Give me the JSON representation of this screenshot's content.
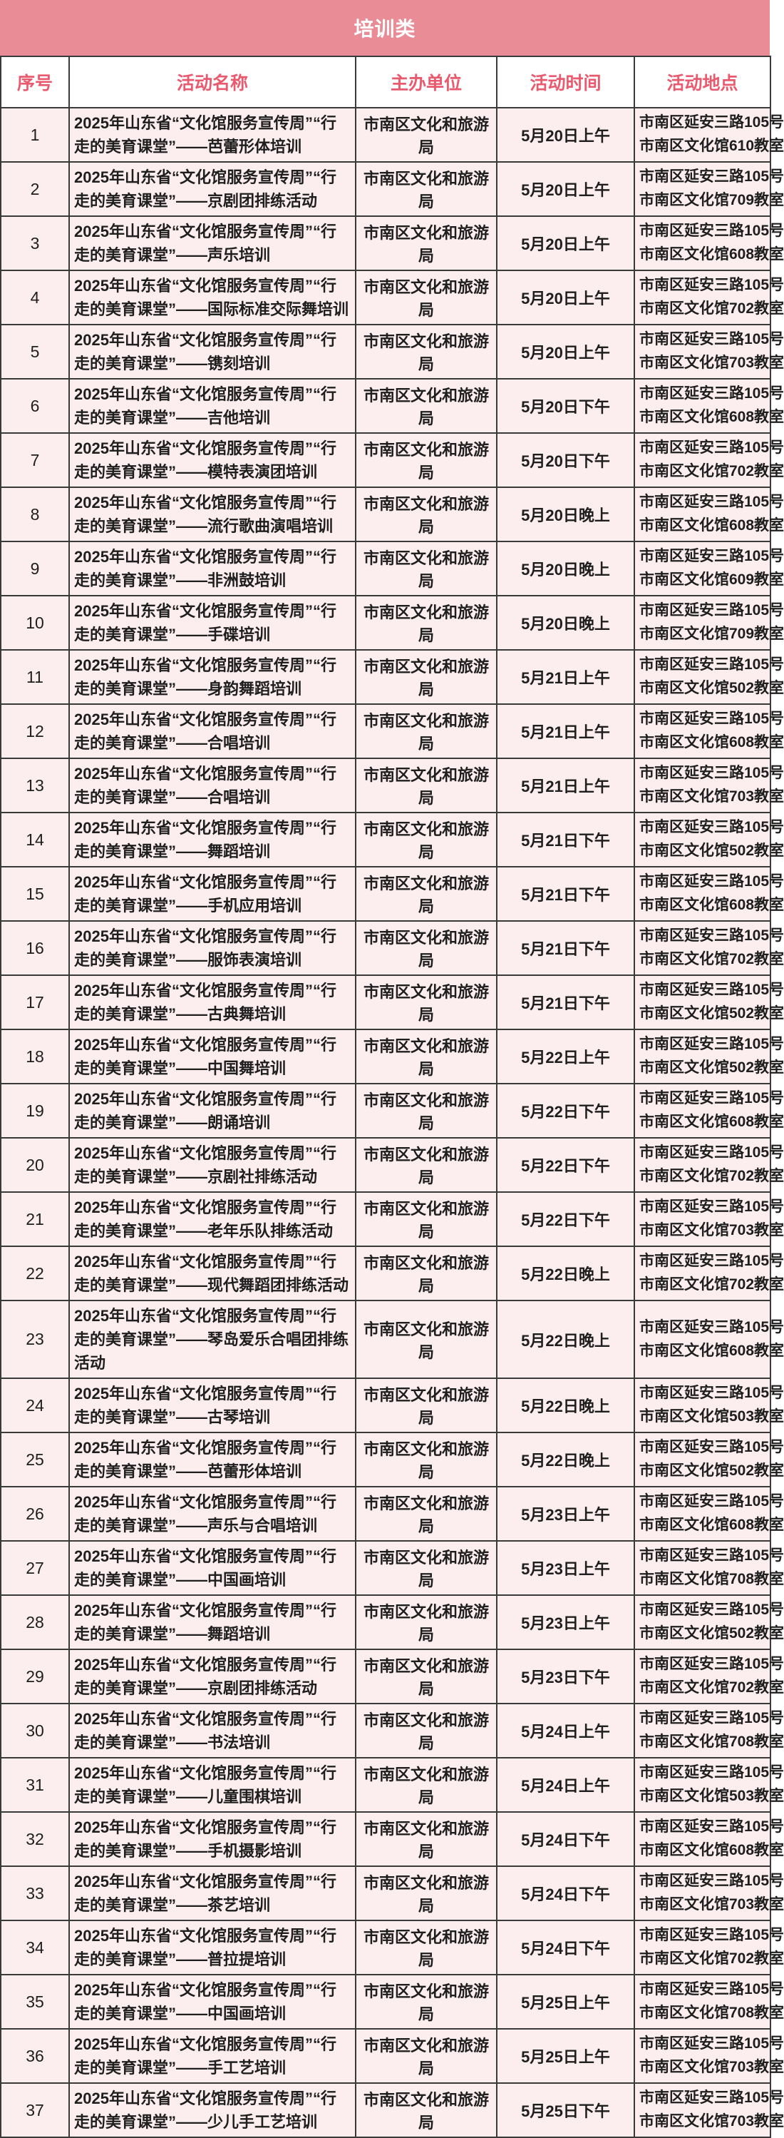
{
  "header": {
    "title": "培训类"
  },
  "columns": {
    "no": "序号",
    "name": "活动名称",
    "org": "主办单位",
    "time": "活动时间",
    "addr": "活动地点"
  },
  "colors": {
    "title_bar_bg": "#ea8c96",
    "title_text": "#ffffff",
    "header_text": "#ea5a6e",
    "row_bg": "#fcedef",
    "border": "#3a3a3a"
  },
  "rows": [
    {
      "no": "1",
      "name": "2025年山东省“文化馆服务宣传周”“行走的美育课堂”——芭蕾形体培训",
      "org": "市南区文化和旅游局",
      "time": "5月20日上午",
      "addr1": "市南区延安三路105号",
      "addr2": "市南区文化馆610教室"
    },
    {
      "no": "2",
      "name": "2025年山东省“文化馆服务宣传周”“行走的美育课堂”——京剧团排练活动",
      "org": "市南区文化和旅游局",
      "time": "5月20日上午",
      "addr1": "市南区延安三路105号",
      "addr2": "市南区文化馆709教室"
    },
    {
      "no": "3",
      "name": "2025年山东省“文化馆服务宣传周”“行走的美育课堂”——声乐培训",
      "org": "市南区文化和旅游局",
      "time": "5月20日上午",
      "addr1": "市南区延安三路105号",
      "addr2": "市南区文化馆608教室"
    },
    {
      "no": "4",
      "name": "2025年山东省“文化馆服务宣传周”“行走的美育课堂”——国际标准交际舞培训",
      "org": "市南区文化和旅游局",
      "time": "5月20日上午",
      "addr1": "市南区延安三路105号",
      "addr2": "市南区文化馆702教室"
    },
    {
      "no": "5",
      "name": "2025年山东省“文化馆服务宣传周”“行走的美育课堂”——镌刻培训",
      "org": "市南区文化和旅游局",
      "time": "5月20日上午",
      "addr1": "市南区延安三路105号",
      "addr2": "市南区文化馆703教室"
    },
    {
      "no": "6",
      "name": "2025年山东省“文化馆服务宣传周”“行走的美育课堂”——吉他培训",
      "org": "市南区文化和旅游局",
      "time": "5月20日下午",
      "addr1": "市南区延安三路105号",
      "addr2": "市南区文化馆608教室"
    },
    {
      "no": "7",
      "name": "2025年山东省“文化馆服务宣传周”“行走的美育课堂”——模特表演团培训",
      "org": "市南区文化和旅游局",
      "time": "5月20日下午",
      "addr1": "市南区延安三路105号",
      "addr2": "市南区文化馆702教室"
    },
    {
      "no": "8",
      "name": "2025年山东省“文化馆服务宣传周”“行走的美育课堂”——流行歌曲演唱培训",
      "org": "市南区文化和旅游局",
      "time": "5月20日晚上",
      "addr1": "市南区延安三路105号",
      "addr2": "市南区文化馆608教室"
    },
    {
      "no": "9",
      "name": "2025年山东省“文化馆服务宣传周”“行走的美育课堂”——非洲鼓培训",
      "org": "市南区文化和旅游局",
      "time": "5月20日晚上",
      "addr1": "市南区延安三路105号",
      "addr2": "市南区文化馆609教室"
    },
    {
      "no": "10",
      "name": "2025年山东省“文化馆服务宣传周”“行走的美育课堂”——手碟培训",
      "org": "市南区文化和旅游局",
      "time": "5月20日晚上",
      "addr1": "市南区延安三路105号",
      "addr2": "市南区文化馆709教室"
    },
    {
      "no": "11",
      "name": "2025年山东省“文化馆服务宣传周”“行走的美育课堂”——身韵舞蹈培训",
      "org": "市南区文化和旅游局",
      "time": "5月21日上午",
      "addr1": "市南区延安三路105号",
      "addr2": "市南区文化馆502教室"
    },
    {
      "no": "12",
      "name": "2025年山东省“文化馆服务宣传周”“行走的美育课堂”——合唱培训",
      "org": "市南区文化和旅游局",
      "time": "5月21日上午",
      "addr1": "市南区延安三路105号",
      "addr2": "市南区文化馆608教室"
    },
    {
      "no": "13",
      "name": "2025年山东省“文化馆服务宣传周”“行走的美育课堂”——合唱培训",
      "org": "市南区文化和旅游局",
      "time": "5月21日上午",
      "addr1": "市南区延安三路105号",
      "addr2": "市南区文化馆703教室"
    },
    {
      "no": "14",
      "name": "2025年山东省“文化馆服务宣传周”“行走的美育课堂”——舞蹈培训",
      "org": "市南区文化和旅游局",
      "time": "5月21日下午",
      "addr1": "市南区延安三路105号",
      "addr2": "市南区文化馆502教室"
    },
    {
      "no": "15",
      "name": "2025年山东省“文化馆服务宣传周”“行走的美育课堂”——手机应用培训",
      "org": "市南区文化和旅游局",
      "time": "5月21日下午",
      "addr1": "市南区延安三路105号",
      "addr2": "市南区文化馆608教室"
    },
    {
      "no": "16",
      "name": "2025年山东省“文化馆服务宣传周”“行走的美育课堂”——服饰表演培训",
      "org": "市南区文化和旅游局",
      "time": "5月21日下午",
      "addr1": "市南区延安三路105号",
      "addr2": "市南区文化馆702教室"
    },
    {
      "no": "17",
      "name": "2025年山东省“文化馆服务宣传周”“行走的美育课堂”——古典舞培训",
      "org": "市南区文化和旅游局",
      "time": "5月21日下午",
      "addr1": "市南区延安三路105号",
      "addr2": "市南区文化馆502教室"
    },
    {
      "no": "18",
      "name": "2025年山东省“文化馆服务宣传周”“行走的美育课堂”——中国舞培训",
      "org": "市南区文化和旅游局",
      "time": "5月22日上午",
      "addr1": "市南区延安三路105号",
      "addr2": "市南区文化馆502教室"
    },
    {
      "no": "19",
      "name": "2025年山东省“文化馆服务宣传周”“行走的美育课堂”——朗诵培训",
      "org": "市南区文化和旅游局",
      "time": "5月22日下午",
      "addr1": "市南区延安三路105号",
      "addr2": "市南区文化馆608教室"
    },
    {
      "no": "20",
      "name": "2025年山东省“文化馆服务宣传周”“行走的美育课堂”——京剧社排练活动",
      "org": "市南区文化和旅游局",
      "time": "5月22日下午",
      "addr1": "市南区延安三路105号",
      "addr2": "市南区文化馆702教室"
    },
    {
      "no": "21",
      "name": "2025年山东省“文化馆服务宣传周”“行走的美育课堂”——老年乐队排练活动",
      "org": "市南区文化和旅游局",
      "time": "5月22日下午",
      "addr1": "市南区延安三路105号",
      "addr2": "市南区文化馆703教室"
    },
    {
      "no": "22",
      "name": "2025年山东省“文化馆服务宣传周”“行走的美育课堂”——现代舞蹈团排练活动",
      "org": "市南区文化和旅游局",
      "time": "5月22日晚上",
      "addr1": "市南区延安三路105号",
      "addr2": "市南区文化馆702教室"
    },
    {
      "no": "23",
      "name": "2025年山东省“文化馆服务宣传周”“行走的美育课堂”——琴岛爱乐合唱团排练活动",
      "org": "市南区文化和旅游局",
      "time": "5月22日晚上",
      "addr1": "市南区延安三路105号",
      "addr2": "市南区文化馆608教室"
    },
    {
      "no": "24",
      "name": "2025年山东省“文化馆服务宣传周”“行走的美育课堂”——古琴培训",
      "org": "市南区文化和旅游局",
      "time": "5月22日晚上",
      "addr1": "市南区延安三路105号",
      "addr2": "市南区文化馆503教室"
    },
    {
      "no": "25",
      "name": "2025年山东省“文化馆服务宣传周”“行走的美育课堂”——芭蕾形体培训",
      "org": "市南区文化和旅游局",
      "time": "5月22日晚上",
      "addr1": "市南区延安三路105号",
      "addr2": "市南区文化馆502教室"
    },
    {
      "no": "26",
      "name": "2025年山东省“文化馆服务宣传周”“行走的美育课堂”——声乐与合唱培训",
      "org": "市南区文化和旅游局",
      "time": "5月23日上午",
      "addr1": "市南区延安三路105号",
      "addr2": "市南区文化馆608教室"
    },
    {
      "no": "27",
      "name": "2025年山东省“文化馆服务宣传周”“行走的美育课堂”——中国画培训",
      "org": "市南区文化和旅游局",
      "time": "5月23日上午",
      "addr1": "市南区延安三路105号",
      "addr2": "市南区文化馆708教室"
    },
    {
      "no": "28",
      "name": "2025年山东省“文化馆服务宣传周”“行走的美育课堂”——舞蹈培训",
      "org": "市南区文化和旅游局",
      "time": "5月23日上午",
      "addr1": "市南区延安三路105号",
      "addr2": "市南区文化馆502教室"
    },
    {
      "no": "29",
      "name": "2025年山东省“文化馆服务宣传周”“行走的美育课堂”——京剧团排练活动",
      "org": "市南区文化和旅游局",
      "time": "5月23日下午",
      "addr1": "市南区延安三路105号",
      "addr2": "市南区文化馆702教室"
    },
    {
      "no": "30",
      "name": "2025年山东省“文化馆服务宣传周”“行走的美育课堂”——书法培训",
      "org": "市南区文化和旅游局",
      "time": "5月24日上午",
      "addr1": "市南区延安三路105号",
      "addr2": "市南区文化馆708教室"
    },
    {
      "no": "31",
      "name": "2025年山东省“文化馆服务宣传周”“行走的美育课堂”——儿童围棋培训",
      "org": "市南区文化和旅游局",
      "time": "5月24日上午",
      "addr1": "市南区延安三路105号",
      "addr2": "市南区文化馆503教室"
    },
    {
      "no": "32",
      "name": "2025年山东省“文化馆服务宣传周”“行走的美育课堂”——手机摄影培训",
      "org": "市南区文化和旅游局",
      "time": "5月24日下午",
      "addr1": "市南区延安三路105号",
      "addr2": "市南区文化馆608教室"
    },
    {
      "no": "33",
      "name": "2025年山东省“文化馆服务宣传周”“行走的美育课堂”——茶艺培训",
      "org": "市南区文化和旅游局",
      "time": "5月24日下午",
      "addr1": "市南区延安三路105号",
      "addr2": "市南区文化馆703教室"
    },
    {
      "no": "34",
      "name": "2025年山东省“文化馆服务宣传周”“行走的美育课堂”——普拉提培训",
      "org": "市南区文化和旅游局",
      "time": "5月24日下午",
      "addr1": "市南区延安三路105号",
      "addr2": "市南区文化馆702教室"
    },
    {
      "no": "35",
      "name": "2025年山东省“文化馆服务宣传周”“行走的美育课堂”——中国画培训",
      "org": "市南区文化和旅游局",
      "time": "5月25日上午",
      "addr1": "市南区延安三路105号",
      "addr2": "市南区文化馆708教室"
    },
    {
      "no": "36",
      "name": "2025年山东省“文化馆服务宣传周”“行走的美育课堂”——手工艺培训",
      "org": "市南区文化和旅游局",
      "time": "5月25日上午",
      "addr1": "市南区延安三路105号",
      "addr2": "市南区文化馆703教室"
    },
    {
      "no": "37",
      "name": "2025年山东省“文化馆服务宣传周”“行走的美育课堂”——少儿手工艺培训",
      "org": "市南区文化和旅游局",
      "time": "5月25日下午",
      "addr1": "市南区延安三路105号",
      "addr2": "市南区文化馆703教室"
    }
  ]
}
